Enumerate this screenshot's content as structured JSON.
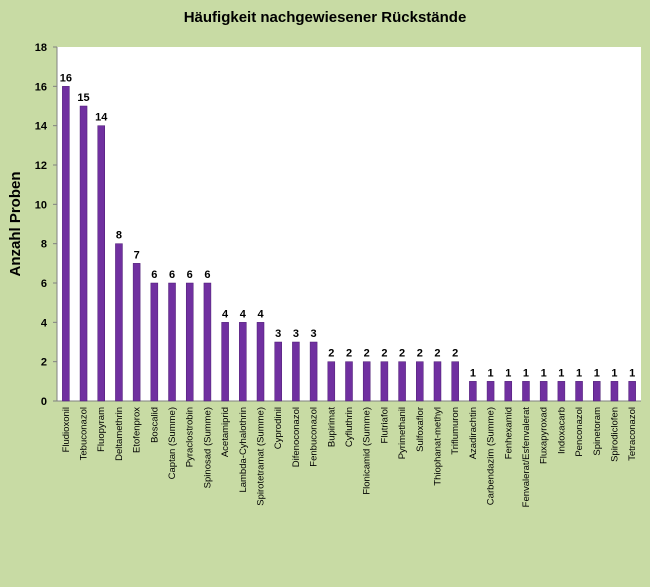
{
  "chart_data": {
    "type": "bar",
    "title": "Häufigkeit nachgewiesener Rückstände",
    "xlabel": "",
    "ylabel": "Anzahl Proben",
    "ylim": [
      0,
      18
    ],
    "yticks": [
      0,
      2,
      4,
      6,
      8,
      10,
      12,
      14,
      16,
      18
    ],
    "grid": false,
    "categories": [
      "Fludioxonil",
      "Tebuconazol",
      "Fluopyram",
      "Deltamethrin",
      "Etofenprox",
      "Boscalid",
      "Captan (Summe)",
      "Pyraclostrobin",
      "Spinosad (Summe)",
      "Acetamiprid",
      "Lambda-Cyhalothrin",
      "Spirotetramat (Summe)",
      "Cyprodinil",
      "Difenoconazol",
      "Fenbuconazol",
      "Bupirimat",
      "Cyfluthrin",
      "Flonicamid (Summe)",
      "Flutriafol",
      "Pyrimethanil",
      "Sulfoxaflor",
      "Thiophanat-methyl",
      "Triflumuron",
      "Azadirachtin",
      "Carbendazim (Summe)",
      "Fenhexamid",
      "Fenvalerat/Esfenvalerat",
      "Fluxapyroxad",
      "Indoxacarb",
      "Penconazol",
      "Spinetoram",
      "Spirodiclofen",
      "Tetraconazol"
    ],
    "values": [
      16,
      15,
      14,
      8,
      7,
      6,
      6,
      6,
      6,
      4,
      4,
      4,
      3,
      3,
      3,
      2,
      2,
      2,
      2,
      2,
      2,
      2,
      2,
      1,
      1,
      1,
      1,
      1,
      1,
      1,
      1,
      1,
      1
    ],
    "colors": {
      "bar": "#7030a0",
      "bar_edge": "#4b1a72",
      "plot_background": "#ffffff",
      "page_background": "#c8dba4"
    }
  }
}
